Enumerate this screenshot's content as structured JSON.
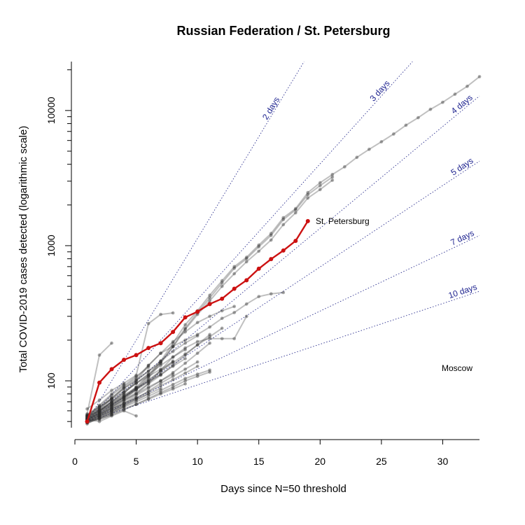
{
  "chart_data": {
    "type": "line",
    "title": "Russian Federation / St. Petersburg",
    "xlabel": "Days since N=50 threshold",
    "ylabel": "Total COVID-2019 cases detected (logarithmic scale)",
    "y_scale": "log",
    "xlim": [
      0,
      33
    ],
    "ylim": [
      45,
      23000
    ],
    "x_ticks": [
      0,
      5,
      10,
      15,
      20,
      25,
      30
    ],
    "y_tick_labels": [
      {
        "value": 100,
        "label": "100"
      },
      {
        "value": 1000,
        "label": "1000"
      },
      {
        "value": 10000,
        "label": "10000"
      }
    ],
    "y_minor_ticks": [
      50,
      60,
      70,
      80,
      90,
      200,
      300,
      400,
      500,
      600,
      700,
      800,
      900,
      2000,
      3000,
      4000,
      5000,
      6000,
      7000,
      8000,
      9000,
      20000
    ],
    "highlight_color": "#cc1111",
    "background_color": "#222222",
    "guide_color": "#1f2490",
    "doubling_guides": [
      {
        "label": "2 days",
        "days": 2
      },
      {
        "label": "3 days",
        "days": 3
      },
      {
        "label": "4 days",
        "days": 4
      },
      {
        "label": "5 days",
        "days": 5
      },
      {
        "label": "7 days",
        "days": 7
      },
      {
        "label": "10 days",
        "days": 10
      }
    ],
    "highlight_series": {
      "name": "St. Petersburg",
      "x": [
        1,
        2,
        3,
        4,
        5,
        6,
        7,
        8,
        9,
        10,
        11,
        12,
        13,
        14,
        15,
        16,
        17,
        18,
        19
      ],
      "y": [
        50,
        97,
        122,
        143,
        155,
        175,
        190,
        230,
        295,
        325,
        370,
        405,
        480,
        555,
        675,
        795,
        920,
        1085,
        1520
      ]
    },
    "other_series": [
      {
        "name": "Moscow",
        "x": [
          1,
          2,
          3,
          4,
          5,
          6,
          7,
          8,
          9,
          10,
          11,
          12,
          13,
          14,
          15,
          16,
          17,
          18,
          19,
          20,
          21,
          22,
          23,
          24,
          25,
          26,
          27,
          28,
          29,
          30,
          31,
          32,
          33
        ],
        "y": [
          52,
          58,
          66,
          75,
          90,
          110,
          140,
          190,
          260,
          330,
          430,
          550,
          700,
          820,
          1010,
          1230,
          1610,
          1880,
          2470,
          2920,
          3360,
          3830,
          4500,
          5160,
          5870,
          6700,
          7780,
          8850,
          10200,
          11500,
          13200,
          15100,
          17800
        ]
      },
      {
        "x": [
          1,
          2,
          3,
          4,
          5,
          6,
          7,
          8,
          9,
          10,
          11,
          12,
          13,
          14,
          15,
          16,
          17,
          18,
          19,
          20,
          21
        ],
        "y": [
          51,
          57,
          65,
          73,
          86,
          105,
          135,
          180,
          245,
          320,
          410,
          530,
          680,
          800,
          980,
          1190,
          1560,
          1840,
          2380,
          2780,
          3220
        ]
      },
      {
        "x": [
          1,
          2,
          3,
          4,
          5,
          6,
          7,
          8,
          9,
          10,
          11,
          12,
          13,
          14,
          15,
          16,
          17,
          18,
          19,
          20,
          21
        ],
        "y": [
          53,
          59,
          67,
          76,
          88,
          108,
          138,
          178,
          240,
          310,
          390,
          500,
          620,
          760,
          910,
          1100,
          1430,
          1750,
          2250,
          2600,
          3050
        ]
      },
      {
        "x": [
          1,
          2,
          3,
          4,
          5,
          6,
          7,
          8,
          9,
          10,
          11,
          12,
          13,
          14,
          15,
          16,
          17
        ],
        "y": [
          55,
          60,
          70,
          80,
          100,
          130,
          160,
          180,
          200,
          220,
          250,
          290,
          320,
          370,
          420,
          440,
          450
        ]
      },
      {
        "x": [
          1,
          2,
          3
        ],
        "y": [
          57,
          155,
          190
        ]
      },
      {
        "x": [
          1,
          2,
          3,
          4,
          5,
          6,
          7,
          8
        ],
        "y": [
          62,
          72,
          85,
          96,
          110,
          265,
          310,
          318
        ]
      },
      {
        "x": [
          1,
          2,
          3,
          4,
          5,
          6,
          7,
          8,
          9,
          10,
          11,
          12,
          13
        ],
        "y": [
          55,
          62,
          74,
          90,
          105,
          130,
          160,
          195,
          230,
          270,
          300,
          330,
          355
        ]
      },
      {
        "x": [
          1,
          2,
          3,
          4,
          5,
          6,
          7,
          8,
          9,
          10,
          11,
          12,
          13,
          14
        ],
        "y": [
          50,
          55,
          62,
          70,
          80,
          95,
          120,
          150,
          175,
          195,
          205,
          205,
          205,
          300
        ]
      },
      {
        "x": [
          1,
          2,
          3,
          4,
          5,
          6,
          7,
          8,
          9,
          10,
          11
        ],
        "y": [
          52,
          56,
          63,
          72,
          82,
          95,
          110,
          130,
          155,
          185,
          220
        ]
      },
      {
        "x": [
          1,
          2,
          3,
          4,
          5,
          6,
          7,
          8,
          9,
          10,
          11
        ],
        "y": [
          48,
          54,
          60,
          68,
          78,
          88,
          100,
          115,
          135,
          160,
          190
        ]
      },
      {
        "x": [
          1,
          2,
          3,
          4,
          5,
          6,
          7,
          8,
          9,
          10
        ],
        "y": [
          53,
          61,
          73,
          88,
          100,
          118,
          140,
          165,
          190,
          215
        ]
      },
      {
        "x": [
          1,
          2,
          3,
          4,
          5,
          6,
          7,
          8,
          9,
          10
        ],
        "y": [
          50,
          55,
          60,
          66,
          74,
          84,
          96,
          108,
          122,
          138
        ]
      },
      {
        "x": [
          1,
          2,
          3,
          4,
          5,
          6,
          7,
          8,
          9
        ],
        "y": [
          54,
          60,
          67,
          76,
          86,
          98,
          112,
          128,
          146
        ]
      },
      {
        "x": [
          1,
          2,
          3,
          4,
          5,
          6,
          7,
          8,
          9
        ],
        "y": [
          51,
          59,
          70,
          82,
          96,
          112,
          130,
          150,
          170
        ]
      },
      {
        "x": [
          1,
          2,
          3,
          4,
          5,
          6,
          7,
          8,
          9,
          10,
          11
        ],
        "y": [
          49,
          52,
          56,
          61,
          67,
          74,
          82,
          90,
          100,
          108,
          116
        ]
      },
      {
        "x": [
          1,
          2,
          3,
          4,
          5,
          6,
          7,
          8,
          9,
          10,
          11
        ],
        "y": [
          50,
          53,
          58,
          64,
          70,
          77,
          85,
          94,
          104,
          112,
          120
        ]
      },
      {
        "x": [
          1,
          2,
          3,
          4,
          5,
          6,
          7,
          8
        ],
        "y": [
          56,
          64,
          73,
          84,
          96,
          108,
          122,
          138
        ]
      },
      {
        "x": [
          1,
          2,
          3,
          4,
          5,
          6,
          7,
          8
        ],
        "y": [
          52,
          57,
          64,
          72,
          80,
          90,
          100,
          112
        ]
      },
      {
        "x": [
          1,
          2,
          3,
          4,
          5,
          6,
          7
        ],
        "y": [
          54,
          63,
          75,
          88,
          102,
          118,
          135
        ]
      },
      {
        "x": [
          1,
          2,
          3,
          4,
          5,
          6,
          7
        ],
        "y": [
          51,
          55,
          60,
          66,
          73,
          80,
          88
        ]
      },
      {
        "x": [
          1,
          2,
          3,
          4,
          5,
          6
        ],
        "y": [
          55,
          65,
          78,
          92,
          108,
          126
        ]
      },
      {
        "x": [
          1,
          2,
          3,
          4,
          5,
          6
        ],
        "y": [
          50,
          54,
          59,
          65,
          72,
          80
        ]
      },
      {
        "x": [
          1,
          2,
          3,
          4,
          5
        ],
        "y": [
          53,
          60,
          68,
          78,
          90
        ]
      },
      {
        "x": [
          1,
          2,
          3,
          4,
          5
        ],
        "y": [
          51,
          56,
          62,
          68,
          75
        ]
      },
      {
        "x": [
          1,
          2,
          3,
          4,
          5
        ],
        "y": [
          52,
          50,
          55,
          60,
          55
        ]
      },
      {
        "x": [
          1,
          2,
          3,
          4
        ],
        "y": [
          56,
          66,
          80,
          94
        ]
      },
      {
        "x": [
          1,
          2,
          3,
          4
        ],
        "y": [
          49,
          53,
          58,
          64
        ]
      },
      {
        "x": [
          1,
          2,
          3
        ],
        "y": [
          55,
          64,
          74
        ]
      },
      {
        "x": [
          1,
          2,
          3
        ],
        "y": [
          50,
          52,
          56
        ]
      },
      {
        "x": [
          1,
          2,
          3,
          4,
          5,
          6,
          7,
          8,
          9,
          10,
          11,
          12
        ],
        "y": [
          51,
          58,
          66,
          76,
          88,
          102,
          118,
          136,
          158,
          184,
          212,
          245
        ]
      },
      {
        "x": [
          1,
          2,
          3,
          4,
          5,
          6,
          7,
          8,
          9,
          10
        ],
        "y": [
          53,
          57,
          62,
          68,
          75,
          83,
          92,
          102,
          114,
          128
        ]
      },
      {
        "x": [
          1,
          2,
          3,
          4,
          5,
          6,
          7,
          8,
          9
        ],
        "y": [
          50,
          53,
          57,
          62,
          67,
          73,
          80,
          87,
          95
        ]
      },
      {
        "x": [
          1,
          2,
          3,
          4,
          5,
          6,
          7
        ],
        "y": [
          54,
          61,
          69,
          78,
          88,
          99,
          111
        ]
      },
      {
        "x": [
          1,
          2,
          3,
          4,
          5,
          6,
          7,
          8
        ],
        "y": [
          49,
          56,
          64,
          74,
          86,
          100,
          118,
          140
        ]
      },
      {
        "x": [
          1,
          2,
          3,
          4,
          5,
          6
        ],
        "y": [
          52,
          60,
          70,
          82,
          96,
          112
        ]
      }
    ],
    "label_st_petersburg": "St. Petersburg",
    "label_moscow": "Moscow"
  }
}
